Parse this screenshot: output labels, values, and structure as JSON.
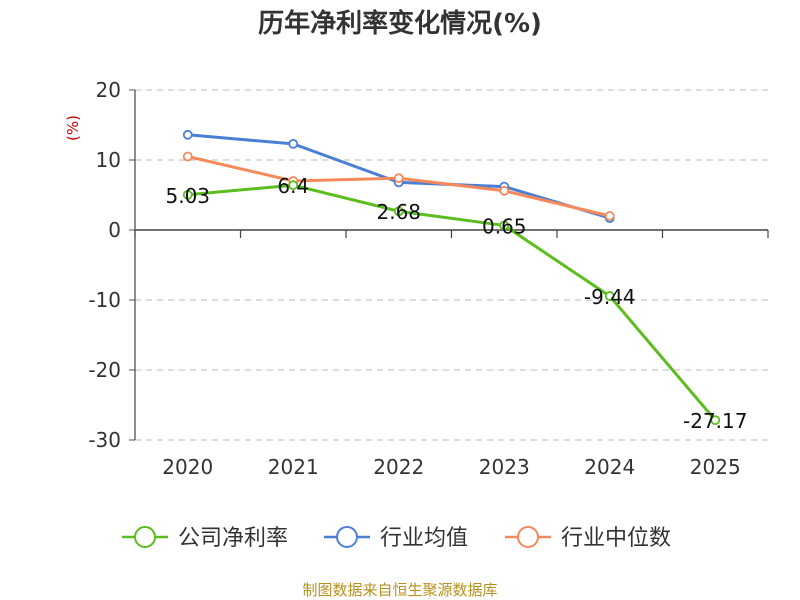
{
  "chart_data": {
    "type": "line",
    "title": "历年净利率变化情况(%)",
    "ylabel": "(%)",
    "xlabel": "",
    "categories": [
      "2020",
      "2021",
      "2022",
      "2023",
      "2024",
      "2025"
    ],
    "ylim": [
      -30,
      20
    ],
    "yticks": [
      20,
      10,
      0,
      -10,
      -20,
      -30
    ],
    "grid": true,
    "legend_position": "bottom",
    "series": [
      {
        "name": "公司净利率",
        "color": "#5cbd1e",
        "values": [
          5.03,
          6.4,
          2.68,
          0.65,
          -9.44,
          -27.17
        ],
        "labels": [
          "5.03",
          "6.4",
          "2.68",
          "0.65",
          "-9.44",
          "-27.17"
        ]
      },
      {
        "name": "行业均值",
        "color": "#4a7fd6",
        "values": [
          13.6,
          12.3,
          6.8,
          6.2,
          1.7,
          null
        ]
      },
      {
        "name": "行业中位数",
        "color": "#f5895a",
        "values": [
          10.5,
          7.0,
          7.4,
          5.6,
          2.0,
          null
        ]
      }
    ]
  },
  "source": "制图数据来自恒生聚源数据库"
}
